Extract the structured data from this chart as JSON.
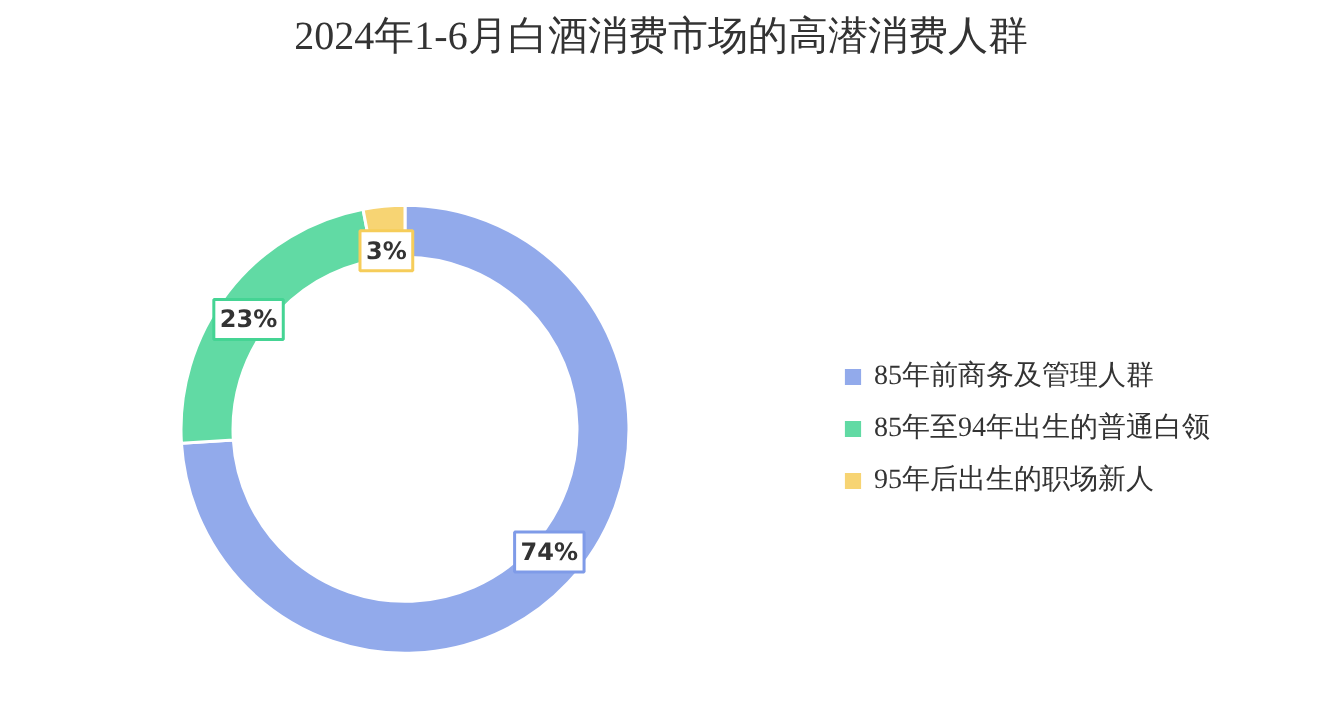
{
  "chart_data": {
    "type": "donut",
    "title": "2024年1-6月白酒消费市场的高潜消费人群",
    "categories": [
      "85年前商务及管理人群",
      "85年至94年出生的普通白领",
      "95年后出生的职场新人"
    ],
    "values": [
      74,
      23,
      3
    ],
    "colors": [
      "#7f9be8",
      "#45d494",
      "#f6cd5a"
    ],
    "value_labels": [
      "74%",
      "23%",
      "3%"
    ],
    "legend": "right"
  }
}
